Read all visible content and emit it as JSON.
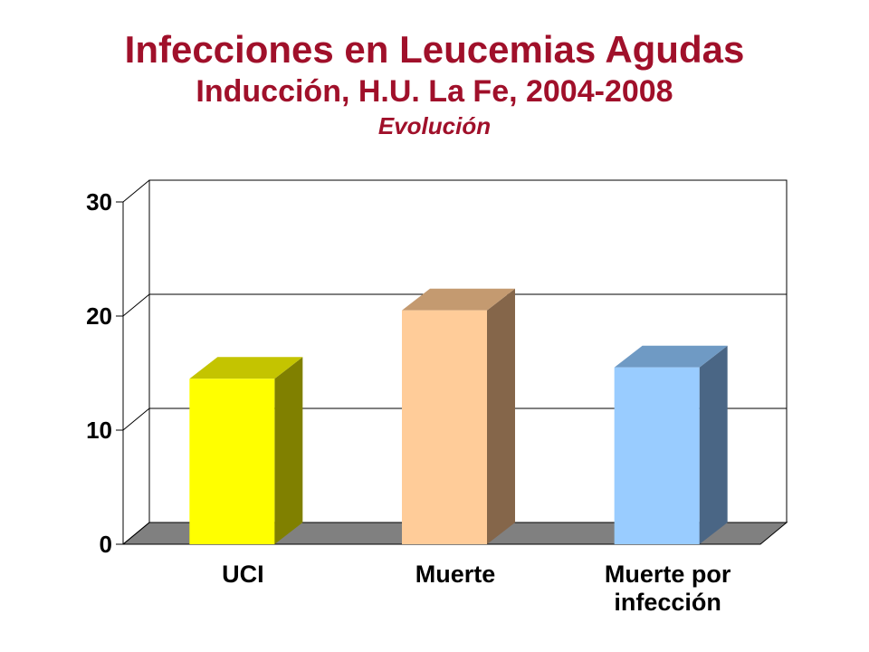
{
  "header": {
    "title": "Infecciones en Leucemias Agudas",
    "subtitle": "Inducción, H.U. La Fe, 2004-2008",
    "caption": "Evolución"
  },
  "chart_data": {
    "type": "bar",
    "three_d": true,
    "categories": [
      [
        "UCI"
      ],
      [
        "Muerte"
      ],
      [
        "Muerte por",
        "infección"
      ]
    ],
    "values": [
      14.5,
      20.5,
      15.5
    ],
    "ylim": [
      0,
      30
    ],
    "yticks": [
      0,
      10,
      20,
      30
    ],
    "grid": true,
    "legend": "none",
    "colors": {
      "front": [
        "#ffff00",
        "#ffcc99",
        "#99ccff"
      ],
      "top": [
        "#c4c400",
        "#c49a70",
        "#6f9ac4"
      ],
      "side": [
        "#808000",
        "#85664a",
        "#4a6685"
      ],
      "floor": "#808080"
    }
  }
}
